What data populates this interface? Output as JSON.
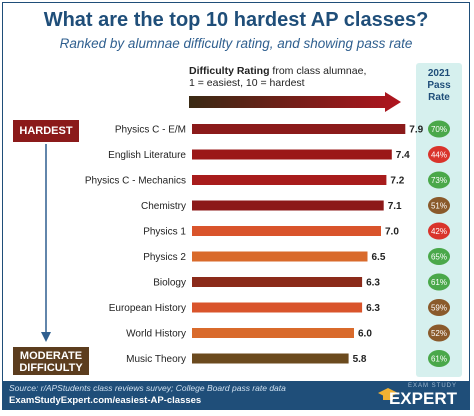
{
  "title": "What are the top 10 hardest AP classes?",
  "subtitle": "Ranked by alumnae difficulty rating, and showing pass rate",
  "legend": {
    "bold": "Difficulty Rating",
    "rest_line1": " from class alumnae,",
    "line2": "1 = easiest, 10 = hardest"
  },
  "pass_header": {
    "line1": "2021",
    "line2": "Pass",
    "line3": "Rate"
  },
  "tags": {
    "hardest": "HARDEST",
    "moderate_line1": "MODERATE",
    "moderate_line2": "DIFFICULTY"
  },
  "footer": {
    "source": "Source: r/APStudents class reviews survey; College Board pass rate data",
    "url": "ExamStudyExpert.com/easiest-AP-classes",
    "brand_small": "EXAM STUDY",
    "brand": "EXPERT"
  },
  "colors": {
    "pass_high": "#4aa84a",
    "pass_mid": "#8a5a2b",
    "pass_low": "#d9342b",
    "gradient_start": "#3a2a14",
    "gradient_end": "#b0141e"
  },
  "icons": {
    "mortarboard": "graduation-cap-icon",
    "gradient_arrow": "arrow-right-icon"
  },
  "chart_data": {
    "type": "bar",
    "orientation": "horizontal",
    "categories": [
      "Physics C - E/M",
      "English Literature",
      "Physics C - Mechanics",
      "Chemistry",
      "Physics 1",
      "Physics 2",
      "Biology",
      "European History",
      "World History",
      "Music Theory"
    ],
    "values": [
      7.9,
      7.4,
      7.2,
      7.1,
      7.0,
      6.5,
      6.3,
      6.3,
      6.0,
      5.8
    ],
    "value_labels": [
      "7.9",
      "7.4",
      "7.2",
      "7.1",
      "7.0",
      "6.5",
      "6.3",
      "6.3",
      "6.0",
      "5.8"
    ],
    "pass_rates": [
      "70%",
      "44%",
      "73%",
      "51%",
      "42%",
      "65%",
      "61%",
      "59%",
      "52%",
      "61%"
    ],
    "bar_colors": [
      "#8b1a1a",
      "#9b1818",
      "#a81c1c",
      "#8c1919",
      "#d9542b",
      "#d96a2b",
      "#8b2a1a",
      "#d9542b",
      "#d96a2b",
      "#6b4a1e"
    ],
    "pass_colors": [
      "#4aa84a",
      "#d9342b",
      "#4aa84a",
      "#8a5a2b",
      "#d9342b",
      "#4aa84a",
      "#4aa84a",
      "#8a5a2b",
      "#8a5a2b",
      "#4aa84a"
    ],
    "xlim": [
      0,
      8
    ],
    "grid": false
  }
}
